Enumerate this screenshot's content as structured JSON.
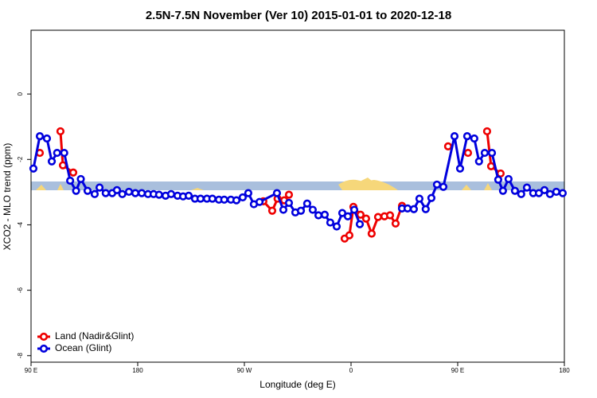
{
  "chart_data": {
    "type": "line",
    "title": "2.5N-7.5N November (Ver 10)   2015-01-01 to 2020-12-18",
    "xlabel": "Longitude (deg E)",
    "ylabel": "XCO2 - MLO trend (ppm)",
    "xlim": [
      90,
      540
    ],
    "ylim": [
      -8.2,
      1.95
    ],
    "xticks": [
      {
        "value": 90,
        "label": "90 E"
      },
      {
        "value": 180,
        "label": "180"
      },
      {
        "value": 270,
        "label": "90 W"
      },
      {
        "value": 360,
        "label": "0"
      },
      {
        "value": 450,
        "label": "90 E"
      },
      {
        "value": 540,
        "label": "180"
      }
    ],
    "yticks": [
      0,
      -2,
      -4,
      -6,
      -8
    ],
    "legend": "bottom-left",
    "series": [
      {
        "name": "Land (Nadir&Glint)",
        "color": "#ee0000",
        "x": [
          97.4,
          null,
          114.8,
          116.9,
          125.6,
          null,
          286,
          293.5,
          298,
          303.6,
          307.6,
          null,
          354.6,
          358.6,
          362,
          368,
          372.7,
          377.4,
          382.8,
          388.2,
          392.9,
          397.6,
          403,
          null,
          441.9,
          null,
          458.7,
          null,
          474.8,
          478.2,
          486.2
        ],
        "values": [
          -1.8,
          null,
          -1.14,
          -2.18,
          -2.4,
          null,
          -3.28,
          -3.57,
          -3.2,
          -3.25,
          -3.08,
          null,
          -4.42,
          -4.32,
          -3.45,
          -3.69,
          -3.81,
          -4.27,
          -3.76,
          -3.74,
          -3.71,
          -3.96,
          -3.42,
          null,
          -1.6,
          null,
          -1.8,
          null,
          -1.14,
          -2.21,
          -2.43
        ]
      },
      {
        "name": "Ocean (Glint)",
        "color": "#0000dd",
        "x": [
          92,
          97.4,
          103.4,
          107.5,
          112,
          118,
          123,
          128,
          132,
          137.7,
          143.7,
          147.8,
          153,
          158.5,
          162.5,
          167,
          172.6,
          178,
          183.4,
          188.7,
          193.4,
          198,
          203.5,
          208.2,
          213.6,
          218.3,
          223,
          228.3,
          233,
          238.4,
          243,
          248.5,
          253,
          258.6,
          263.3,
          268.6,
          273.3,
          278,
          282.8,
          297.5,
          302.9,
          307.6,
          313,
          317.7,
          323,
          327.7,
          332.5,
          337.8,
          342.5,
          347.9,
          352.6,
          357.3,
          362.7,
          367.4,
          null,
          403,
          407.7,
          413,
          417.7,
          423,
          427.8,
          432.5,
          437.9,
          447.3,
          452,
          458,
          464,
          468,
          472.8,
          478.9,
          484.2,
          488.2,
          492.9,
          498.3,
          503.6,
          508.4,
          513.7,
          518.5,
          523.2,
          527.9,
          533.2,
          538.6
        ],
        "values": [
          -2.28,
          -1.29,
          -1.36,
          -2.06,
          -1.8,
          -1.8,
          -2.65,
          -2.96,
          -2.6,
          -2.96,
          -3.06,
          -2.86,
          -3.03,
          -3.03,
          -2.94,
          -3.06,
          -2.99,
          -3.03,
          -3.03,
          -3.06,
          -3.06,
          -3.08,
          -3.11,
          -3.06,
          -3.11,
          -3.13,
          -3.11,
          -3.2,
          -3.2,
          -3.2,
          -3.2,
          -3.23,
          -3.23,
          -3.23,
          -3.25,
          -3.16,
          -3.03,
          -3.37,
          -3.3,
          -3.03,
          -3.54,
          -3.33,
          -3.62,
          -3.57,
          -3.35,
          -3.54,
          -3.71,
          -3.69,
          -3.93,
          -4.05,
          -3.64,
          -3.74,
          -3.54,
          -3.98,
          null,
          -3.5,
          -3.5,
          -3.52,
          -3.2,
          -3.52,
          -3.18,
          -2.77,
          -2.84,
          -1.29,
          -2.28,
          -1.29,
          -1.36,
          -2.06,
          -1.8,
          -1.8,
          -2.62,
          -2.96,
          -2.6,
          -2.96,
          -3.06,
          -2.86,
          -3.03,
          -3.03,
          -2.94,
          -3.06,
          -2.99,
          -3.03
        ]
      }
    ]
  }
}
